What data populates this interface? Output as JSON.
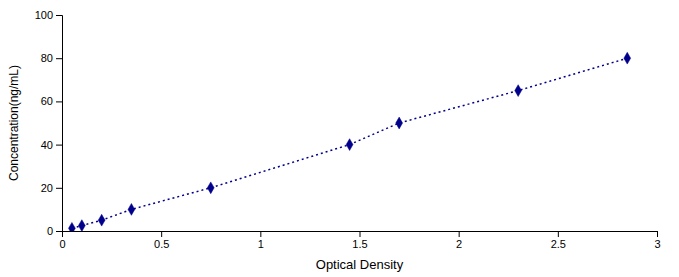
{
  "chart_data": {
    "type": "line",
    "xlabel": "Optical Density",
    "ylabel": "Concentration(ng/mL)",
    "x": [
      0.05,
      0.1,
      0.2,
      0.35,
      0.75,
      1.45,
      1.7,
      2.3,
      2.85
    ],
    "values": [
      1.25,
      2.5,
      5.0,
      10.0,
      20.0,
      40.0,
      50.0,
      65.0,
      80.0
    ],
    "color": "#00008B",
    "marker": "diamond",
    "line_style": "dotted",
    "xlim": [
      0,
      3.0
    ],
    "ylim": [
      0,
      100
    ],
    "xticks": [
      0,
      0.5,
      1,
      1.5,
      2,
      2.5,
      3
    ],
    "yticks": [
      0,
      20,
      40,
      60,
      80,
      100
    ]
  }
}
